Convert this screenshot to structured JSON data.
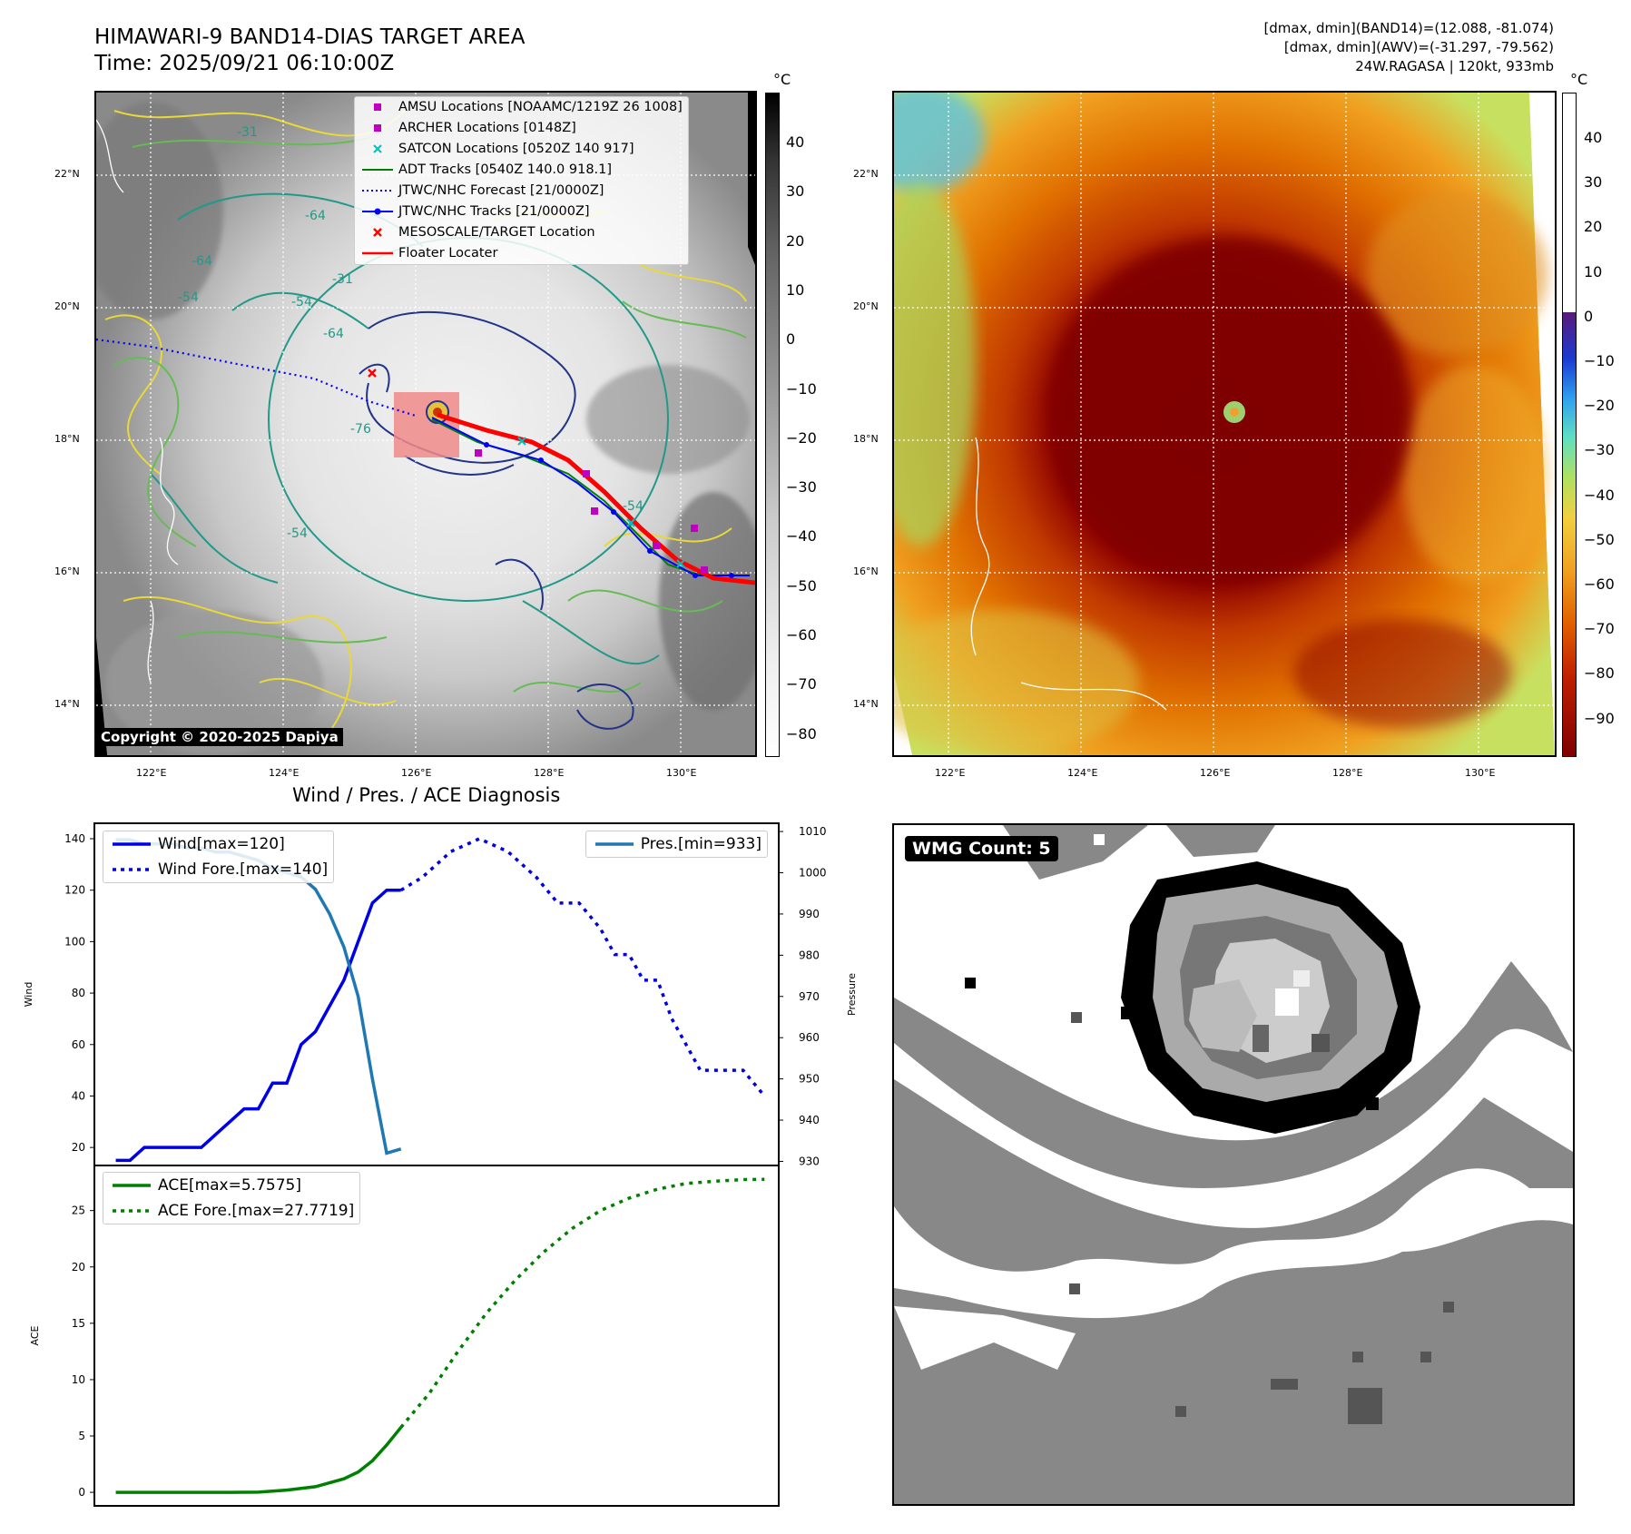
{
  "header": {
    "title_line1": "HIMAWARI-9 BAND14-DIAS TARGET AREA",
    "title_line2": "Time: 2025/09/21 06:10:00Z",
    "info_line1": "[dmax, dmin](BAND14)=(12.088, -81.074)",
    "info_line2": "[dmax, dmin](AWV)=(-31.297, -79.562)",
    "info_line3": "24W.RAGASA | 120kt, 933mb"
  },
  "map_axes": {
    "lat_labels": [
      "22°N",
      "20°N",
      "18°N",
      "16°N",
      "14°N"
    ],
    "lon_labels": [
      "122°E",
      "124°E",
      "126°E",
      "128°E",
      "130°E"
    ]
  },
  "left_map": {
    "copyright": "Copyright © 2020-2025 Dapiya",
    "contour_labels": [
      "-31",
      "-64",
      "-64",
      "-54",
      "-76",
      "-54",
      "-64",
      "-54",
      "-31",
      "-54"
    ],
    "legend": [
      {
        "label": "AMSU Locations [NOAAMC/1219Z 26 1008]",
        "symbol": "square",
        "color": "#c000c0"
      },
      {
        "label": "ARCHER Locations [0148Z]",
        "symbol": "square",
        "color": "#c000c0"
      },
      {
        "label": "SATCON Locations [0520Z 140 917]",
        "symbol": "x",
        "color": "#00bfbf"
      },
      {
        "label": "ADT Tracks [0540Z 140.0 918.1]",
        "symbol": "line",
        "color": "#008000"
      },
      {
        "label": "JTWC/NHC Forecast [21/0000Z]",
        "symbol": "dotted",
        "color": "#0000ff"
      },
      {
        "label": "JTWC/NHC Tracks [21/0000Z]",
        "symbol": "line-dot",
        "color": "#0000ff"
      },
      {
        "label": "MESOSCALE/TARGET Location",
        "symbol": "x",
        "color": "#ff0000"
      },
      {
        "label": "Floater Locater",
        "symbol": "line",
        "color": "#ff0000"
      }
    ],
    "colorbar": {
      "unit": "°C",
      "ticks": [
        "40",
        "30",
        "20",
        "10",
        "0",
        "−10",
        "−20",
        "−30",
        "−40",
        "−50",
        "−60",
        "−70",
        "−80"
      ]
    }
  },
  "right_map": {
    "colorbar": {
      "unit": "°C",
      "ticks": [
        "40",
        "30",
        "20",
        "10",
        "0",
        "−10",
        "−20",
        "−30",
        "−40",
        "−50",
        "−60",
        "−70",
        "−80",
        "−90"
      ]
    }
  },
  "wmg_panel": {
    "badge": "WMG Count: 5"
  },
  "chart_data": [
    {
      "type": "line",
      "title": "Wind / Pres. / ACE Diagnosis",
      "ylabel": "Wind",
      "y2label": "Pressure",
      "ylim": [
        13,
        146
      ],
      "y2lim": [
        929,
        1012
      ],
      "yticks": [
        20,
        40,
        60,
        80,
        100,
        120,
        140
      ],
      "y2ticks": [
        930,
        940,
        950,
        960,
        970,
        980,
        990,
        1000,
        1010
      ],
      "legend_left": [
        "Wind[max=120]",
        "Wind Fore.[max=140]"
      ],
      "legend_right": [
        "Pres.[min=933]"
      ],
      "series": [
        {
          "name": "Wind[max=120]",
          "axis": "left",
          "style": "solid",
          "color": "#0000e6",
          "x": [
            0,
            2,
            4,
            6,
            8,
            10,
            12,
            14,
            16,
            18,
            20,
            22,
            24,
            26,
            28,
            30,
            32,
            34,
            36,
            38,
            40
          ],
          "y": [
            15,
            15,
            20,
            20,
            20,
            20,
            20,
            25,
            30,
            35,
            35,
            45,
            45,
            60,
            65,
            75,
            85,
            100,
            115,
            120,
            120
          ]
        },
        {
          "name": "Wind Fore.[max=140]",
          "axis": "left",
          "style": "dotted",
          "color": "#0000e6",
          "x": [
            40,
            43,
            47,
            51,
            55,
            59,
            62,
            65,
            68,
            70,
            72,
            74,
            76,
            78,
            80,
            82,
            85,
            88,
            91
          ],
          "y": [
            120,
            125,
            135,
            140,
            135,
            125,
            115,
            115,
            105,
            95,
            95,
            85,
            85,
            70,
            60,
            50,
            50,
            50,
            40
          ]
        },
        {
          "name": "Pres.[min=933]",
          "axis": "right",
          "style": "solid",
          "color": "#1f77b4",
          "x": [
            0,
            2,
            4,
            6,
            8,
            10,
            12,
            14,
            16,
            18,
            20,
            22,
            24,
            26,
            28,
            30,
            32,
            34,
            36,
            38,
            40
          ],
          "y": [
            1008,
            1008,
            1007,
            1007,
            1007,
            1006,
            1006,
            1005,
            1005,
            1004,
            1003,
            1001,
            1000,
            999,
            996,
            990,
            982,
            970,
            950,
            932,
            933
          ]
        }
      ]
    },
    {
      "type": "line",
      "ylabel": "ACE",
      "ylim": [
        -1.2,
        29
      ],
      "yticks": [
        0,
        5,
        10,
        15,
        20,
        25
      ],
      "legend": [
        "ACE[max=5.7575]",
        "ACE Fore.[max=27.7719]"
      ],
      "series": [
        {
          "name": "ACE[max=5.7575]",
          "style": "solid",
          "color": "#008000",
          "x": [
            0,
            4,
            8,
            12,
            16,
            20,
            24,
            28,
            32,
            34,
            36,
            38,
            40
          ],
          "y": [
            0,
            0,
            0,
            0,
            0,
            0.02,
            0.2,
            0.5,
            1.2,
            1.8,
            2.8,
            4.2,
            5.76
          ]
        },
        {
          "name": "ACE Fore.[max=27.7719]",
          "style": "dotted",
          "color": "#008000",
          "x": [
            40,
            44,
            48,
            52,
            56,
            60,
            64,
            68,
            72,
            76,
            80,
            84,
            88,
            91
          ],
          "y": [
            5.76,
            8.8,
            12.5,
            15.9,
            18.8,
            21.3,
            23.4,
            25.0,
            26.1,
            26.9,
            27.4,
            27.6,
            27.75,
            27.77
          ]
        }
      ]
    }
  ]
}
